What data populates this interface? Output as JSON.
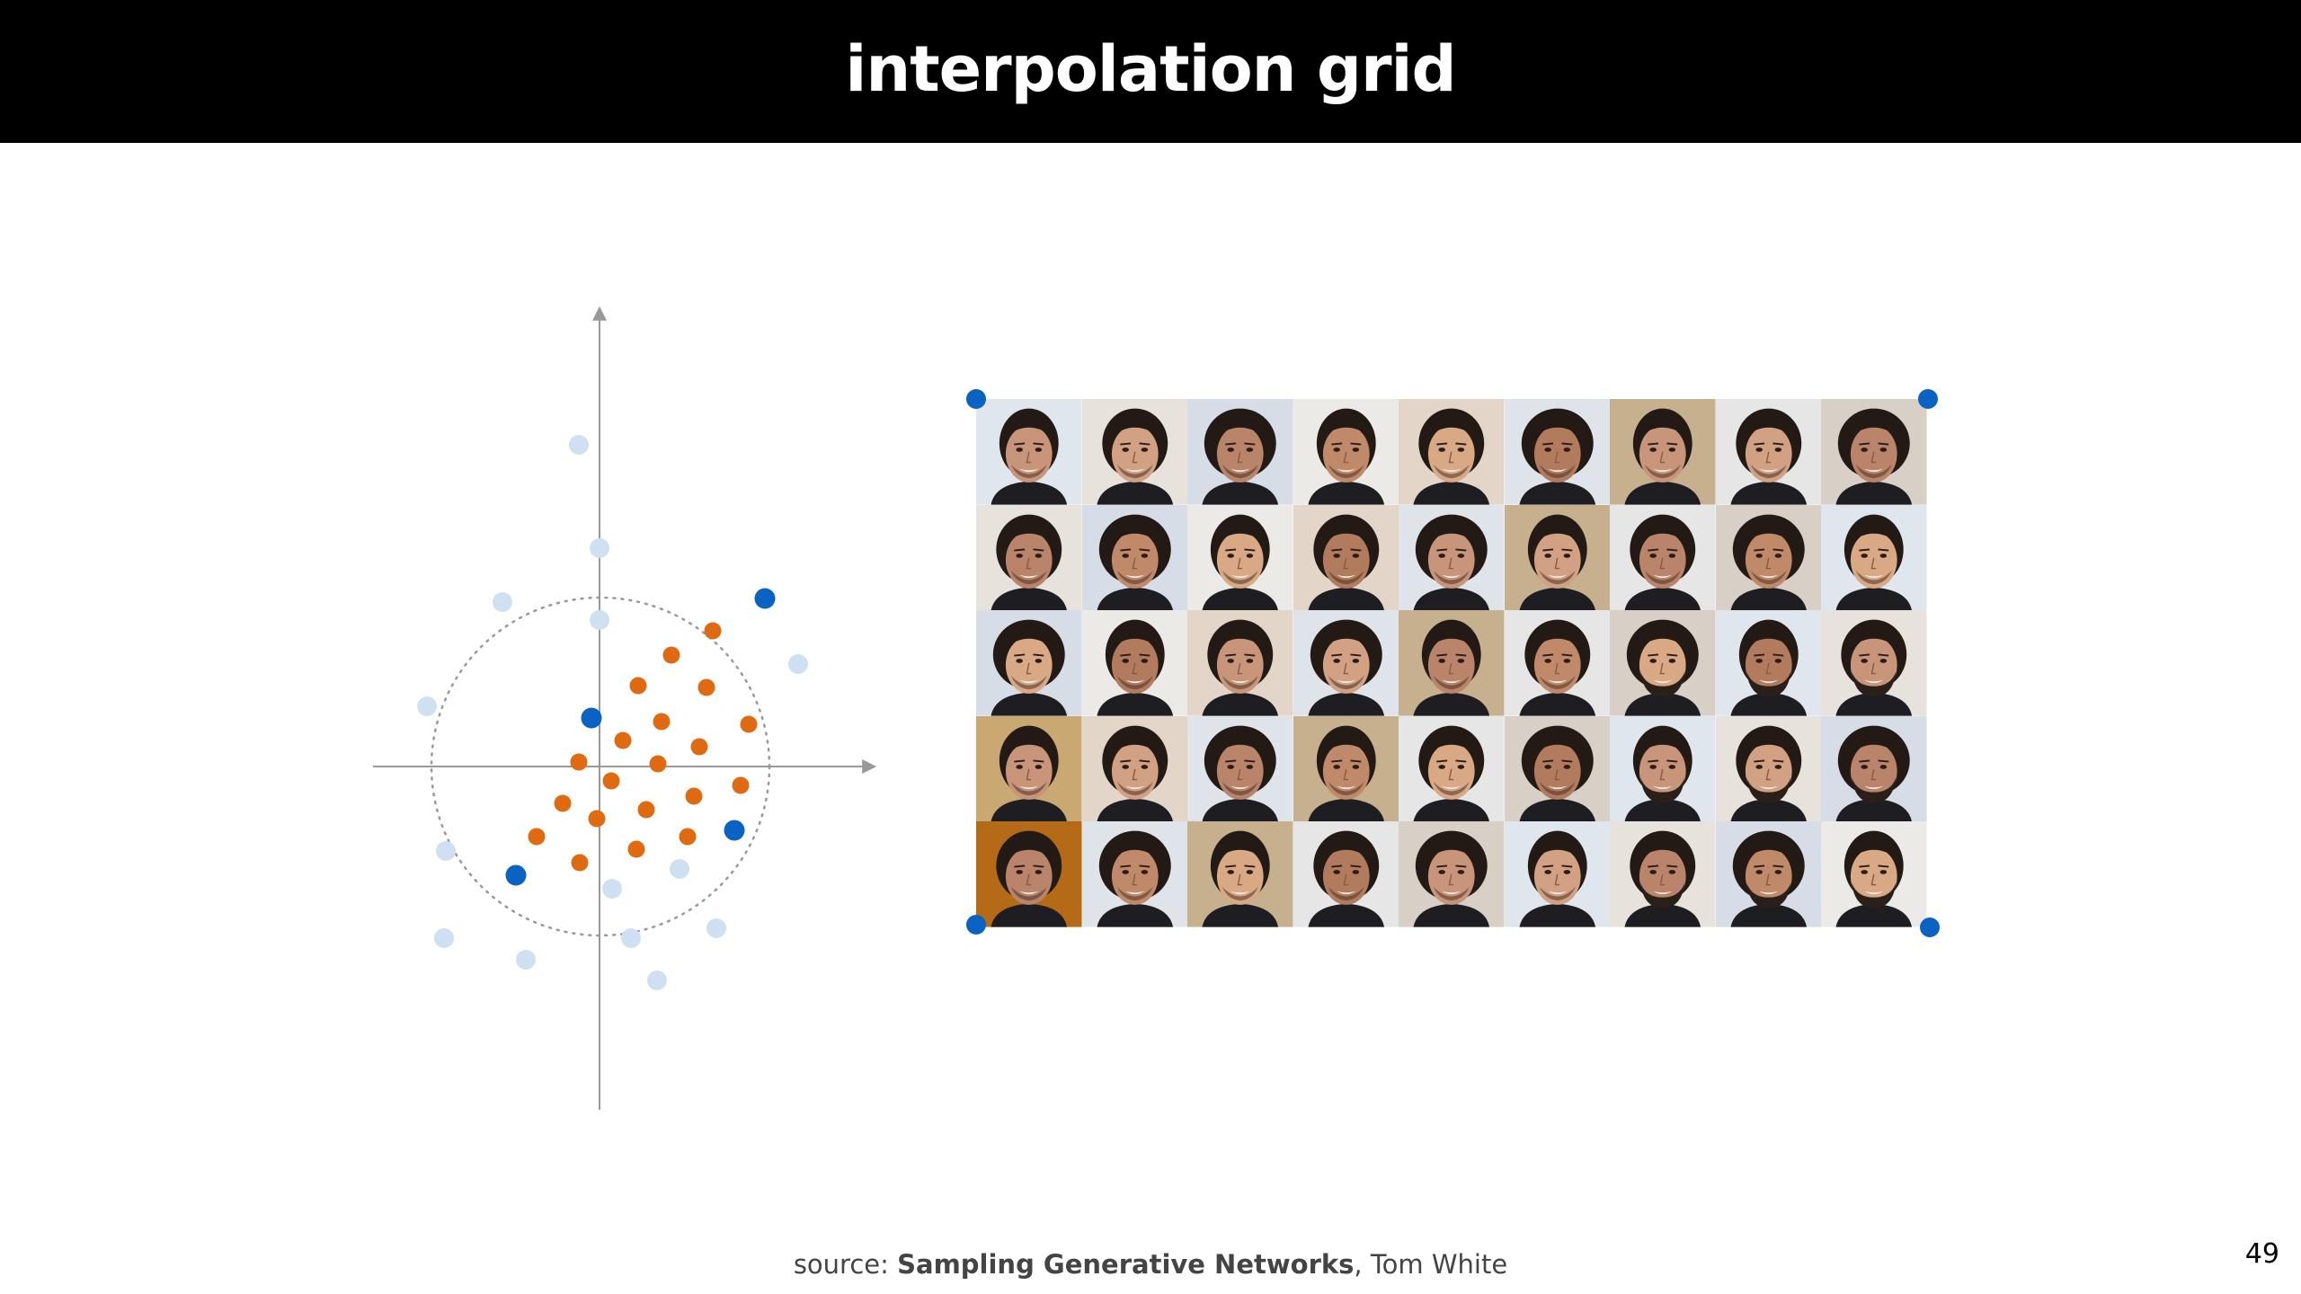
{
  "slide": {
    "title": "interpolation grid",
    "page_number": "49"
  },
  "source": {
    "prefix": "source: ",
    "title": "Sampling Generative Networks",
    "suffix": ", Tom White"
  },
  "colors": {
    "background_points": "#cfe0f3",
    "interpolated_points": "#e06a12",
    "anchor_points": "#0a63c2",
    "axis": "#999999",
    "circle": "#999999",
    "title_bar": "#000000"
  },
  "face_grid": {
    "rows": 5,
    "columns": 9,
    "content": "generated face images"
  }
}
